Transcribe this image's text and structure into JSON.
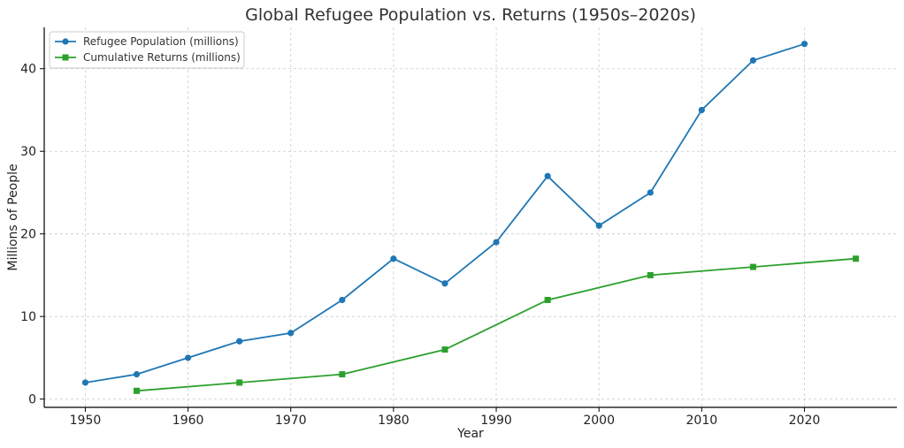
{
  "chart_data": {
    "type": "line",
    "title": "Global Refugee Population vs. Returns (1950s–2020s)",
    "xlabel": "Year",
    "ylabel": "Millions of People",
    "xlim": [
      1946,
      2029
    ],
    "ylim": [
      -1,
      45
    ],
    "xticks": [
      1950,
      1960,
      1970,
      1980,
      1990,
      2000,
      2010,
      2020
    ],
    "yticks": [
      0,
      10,
      20,
      30,
      40
    ],
    "grid": true,
    "legend_position": "top-left",
    "series": [
      {
        "name": "Refugee Population (millions)",
        "color": "#1f77b4",
        "marker": "circle",
        "x": [
          1950,
          1955,
          1960,
          1965,
          1970,
          1975,
          1980,
          1985,
          1990,
          1995,
          2000,
          2005,
          2010,
          2015,
          2020
        ],
        "values": [
          2,
          3,
          5,
          7,
          8,
          12,
          17,
          14,
          19,
          27,
          21,
          25,
          35,
          41,
          43
        ]
      },
      {
        "name": "Cumulative Returns (millions)",
        "color": "#2ca02c",
        "marker": "square",
        "x": [
          1955,
          1965,
          1975,
          1985,
          1995,
          2005,
          2015,
          2025
        ],
        "values": [
          1,
          2,
          3,
          6,
          12,
          15,
          16,
          17
        ]
      }
    ]
  }
}
